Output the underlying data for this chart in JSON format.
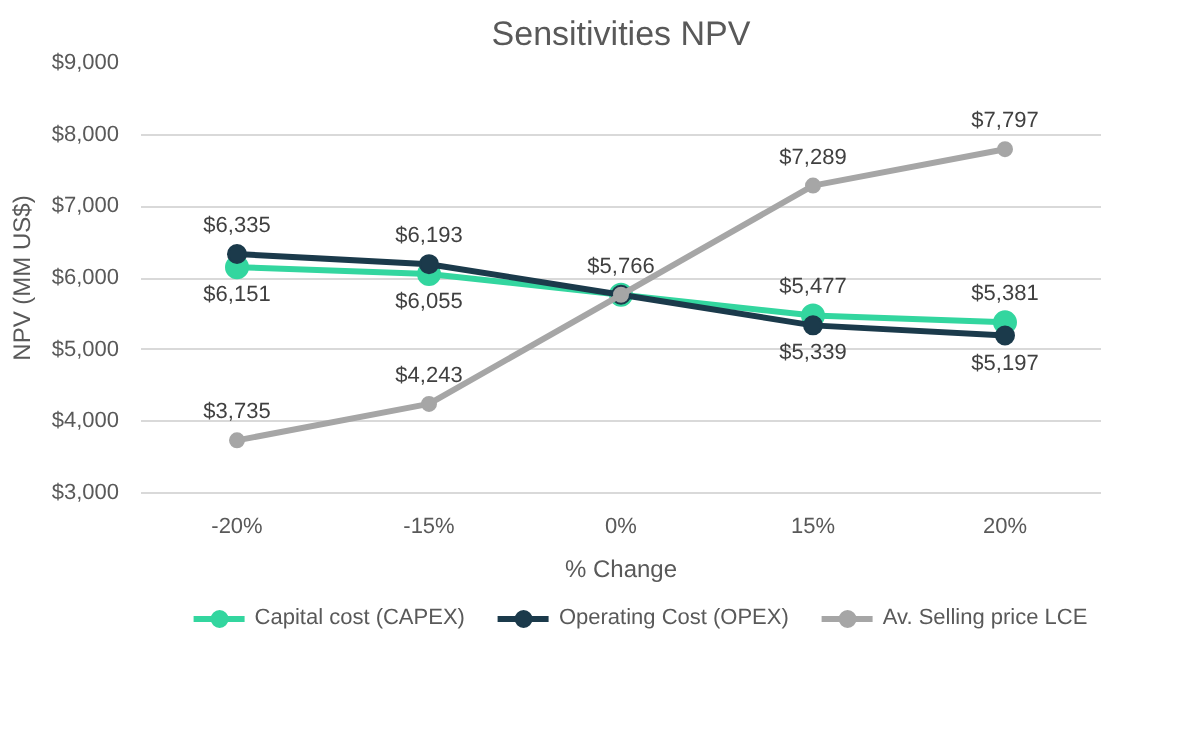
{
  "chart_data": {
    "type": "line",
    "title": "Sensitivities NPV",
    "xlabel": "% Change",
    "ylabel": "NPV (MM US$)",
    "categories": [
      "-20%",
      "-15%",
      "0%",
      "15%",
      "20%"
    ],
    "series": [
      {
        "name": "Capital cost (CAPEX)",
        "color": "#33d69f",
        "values": [
          6151,
          6055,
          5766,
          5477,
          5381
        ],
        "value_labels": [
          "$6,151",
          "$6,055",
          null,
          "$5,477",
          "$5,381"
        ]
      },
      {
        "name": "Operating Cost (OPEX)",
        "color": "#1b3a4b",
        "values": [
          6335,
          6193,
          5766,
          5339,
          5197
        ],
        "value_labels": [
          "$6,335",
          "$6,193",
          "$5,766",
          "$5,339",
          "$5,197"
        ]
      },
      {
        "name": "Av. Selling price LCE",
        "color": "#a6a6a6",
        "values": [
          3735,
          4243,
          5766,
          7289,
          7797
        ],
        "value_labels": [
          "$3,735",
          "$4,243",
          null,
          "$7,289",
          "$7,797"
        ]
      }
    ],
    "ylim": [
      3000,
      9000
    ],
    "yticks": [
      {
        "value": 3000,
        "label": "$3,000"
      },
      {
        "value": 4000,
        "label": "$4,000"
      },
      {
        "value": 5000,
        "label": "$5,000"
      },
      {
        "value": 6000,
        "label": "$6,000"
      },
      {
        "value": 7000,
        "label": "$7,000"
      },
      {
        "value": 8000,
        "label": "$8,000"
      },
      {
        "value": 9000,
        "label": "$9,000"
      }
    ],
    "grid": "y",
    "legend": "bottom",
    "marker": "circle",
    "line_style": "solid"
  }
}
